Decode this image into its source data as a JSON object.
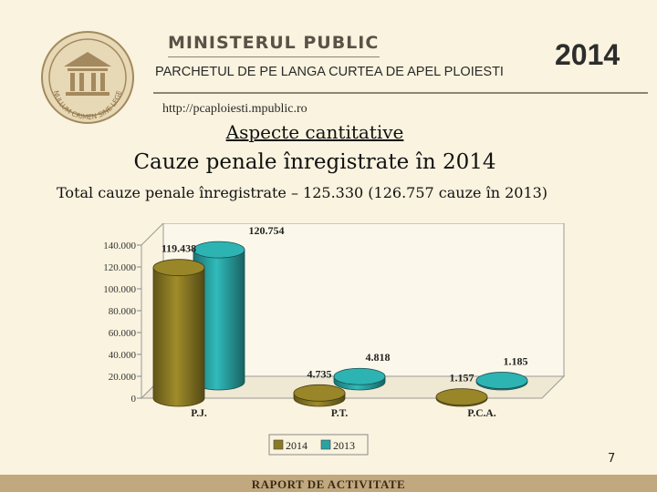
{
  "header": {
    "logo_text": "NULLUM CRIMEN SINE LEGE",
    "ministry": "MINISTERUL PUBLIC",
    "parchet": "PARCHETUL DE PE LANGA CURTEA DE APEL PLOIESTI",
    "year": "2014",
    "url": "http://pcaploiesti.mpublic.ro"
  },
  "slide": {
    "heading": "Aspecte cantitative",
    "title": "Cauze penale înregistrate în 2014",
    "subtitle": "Total cauze penale înregistrate –  125.330 (126.757 cauze în 2013)",
    "page_number": "7"
  },
  "footer": {
    "text": "RAPORT DE ACTIVITATE"
  },
  "colors": {
    "bar_2014": "#8b7a24",
    "bar_2013": "#2aa3a3",
    "background": "#f9f3df",
    "footer": "#c2a87e"
  },
  "chart_data": {
    "type": "bar",
    "categories": [
      "P.J.",
      "P.T.",
      "P.C.A."
    ],
    "series": [
      {
        "name": "2014",
        "values": [
          119438,
          4735,
          1157
        ],
        "labels": [
          "119.438",
          "4.735",
          "1.157"
        ]
      },
      {
        "name": "2013",
        "values": [
          120754,
          4818,
          1185
        ],
        "labels": [
          "120.754",
          "4.818",
          "1.185"
        ]
      }
    ],
    "yticks": [
      "0",
      "20.000",
      "40.000",
      "60.000",
      "80.000",
      "100.000",
      "120.000",
      "140.000"
    ],
    "ylim": [
      0,
      140000
    ],
    "legend_position": "bottom",
    "grid": false
  }
}
